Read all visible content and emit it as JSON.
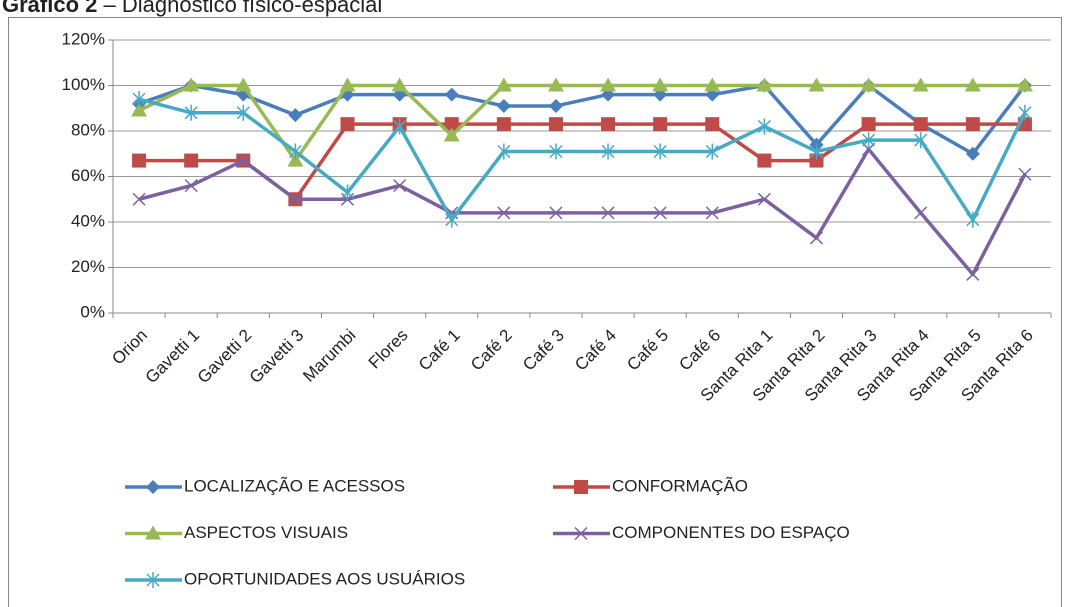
{
  "chart_data": {
    "type": "line",
    "title": "Gráfico 2",
    "subtitle": "– Diagnóstico físico-espacial",
    "categories": [
      "Orion",
      "Gavetti 1",
      "Gavetti 2",
      "Gavetti 3",
      "Marumbi",
      "Flores",
      "Café 1",
      "Café 2",
      "Café 3",
      "Café 4",
      "Café 5",
      "Café 6",
      "Santa Rita 1",
      "Santa Rita 2",
      "Santa Rita 3",
      "Santa Rita 4",
      "Santa Rita 5",
      "Santa Rita 6"
    ],
    "series": [
      {
        "name": "LOCALIZAÇÃO E ACESSOS",
        "color": "#4a7ebb",
        "marker": "diamond",
        "values": [
          92,
          100,
          96,
          87,
          96,
          96,
          96,
          91,
          91,
          96,
          96,
          96,
          100,
          74,
          100,
          83,
          70,
          100
        ]
      },
      {
        "name": "CONFORMAÇÃO",
        "color": "#be4b48",
        "marker": "square",
        "values": [
          67,
          67,
          67,
          50,
          83,
          83,
          83,
          83,
          83,
          83,
          83,
          83,
          67,
          67,
          83,
          83,
          83,
          83
        ]
      },
      {
        "name": "ASPECTOS VISUAIS",
        "color": "#98b954",
        "marker": "triangle",
        "values": [
          89,
          100,
          100,
          67,
          100,
          100,
          78,
          100,
          100,
          100,
          100,
          100,
          100,
          100,
          100,
          100,
          100,
          100
        ]
      },
      {
        "name": "COMPONENTES DO ESPAÇO",
        "color": "#7d60a0",
        "marker": "x",
        "values": [
          50,
          56,
          67,
          50,
          50,
          56,
          44,
          44,
          44,
          44,
          44,
          44,
          50,
          33,
          72,
          44,
          17,
          61
        ]
      },
      {
        "name": "OPORTUNIDADES AOS USUÁRIOS",
        "color": "#46aac5",
        "marker": "star",
        "values": [
          94,
          88,
          88,
          71,
          53,
          82,
          41,
          71,
          71,
          71,
          71,
          71,
          82,
          71,
          76,
          76,
          41,
          88
        ]
      }
    ],
    "ylim": [
      0,
      120
    ],
    "yticks": [
      {
        "value": 0,
        "label": "0%"
      },
      {
        "value": 20,
        "label": "20%"
      },
      {
        "value": 40,
        "label": "40%"
      },
      {
        "value": 60,
        "label": "60%"
      },
      {
        "value": 80,
        "label": "80%"
      },
      {
        "value": 100,
        "label": "100%"
      },
      {
        "value": 120,
        "label": "120%"
      }
    ],
    "grid": true,
    "legend": "bottom"
  }
}
